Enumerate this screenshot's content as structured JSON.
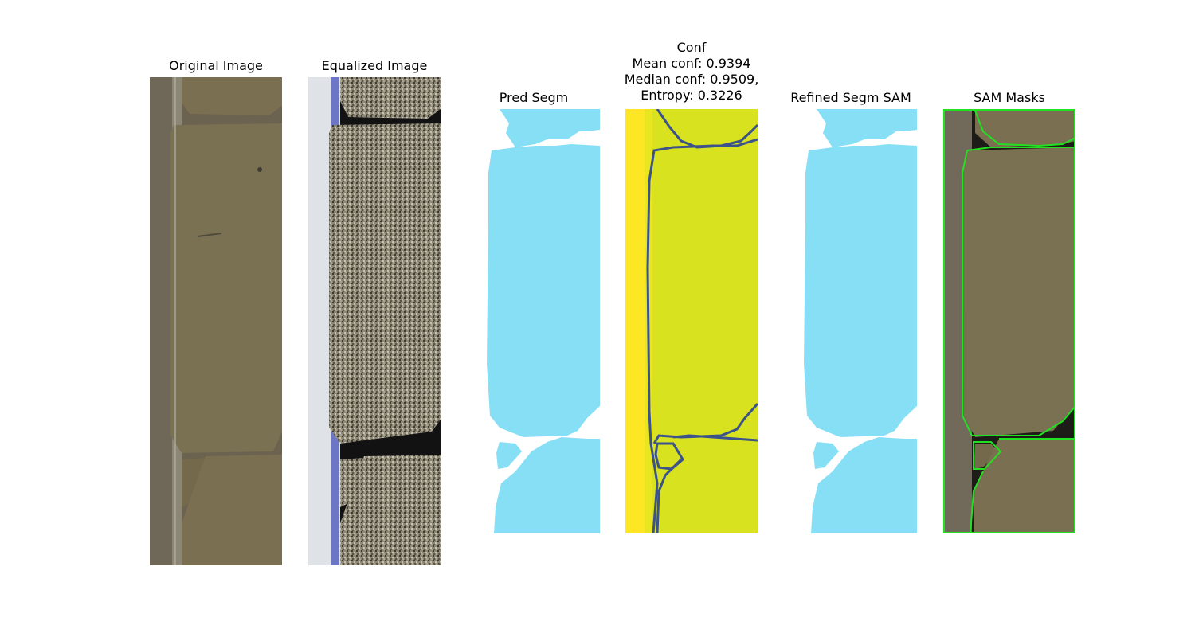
{
  "panels": [
    {
      "title": "Original Image",
      "icon": "core-photo"
    },
    {
      "title": "Equalized Image",
      "icon": "core-photo-equalized"
    },
    {
      "title": "Pred Segm",
      "icon": "segmentation-mask"
    },
    {
      "title_lines": [
        "Conf",
        "Mean conf: 0.9394",
        "Median conf: 0.9509,",
        "Entropy: 0.3226"
      ],
      "icon": "confidence-heatmap"
    },
    {
      "title": "Refined Segm SAM",
      "icon": "segmentation-mask"
    },
    {
      "title": "SAM Masks",
      "icon": "core-photo-with-mask-outlines"
    }
  ],
  "colors": {
    "mask": "#87dff5",
    "heatmap_high": "#d9e21e",
    "heatmap_edge": "#fde725",
    "heatmap_low": "#3b528b",
    "sam_outline": "#22e022",
    "rock": "#7a6f52",
    "tray": "#6e675a"
  }
}
